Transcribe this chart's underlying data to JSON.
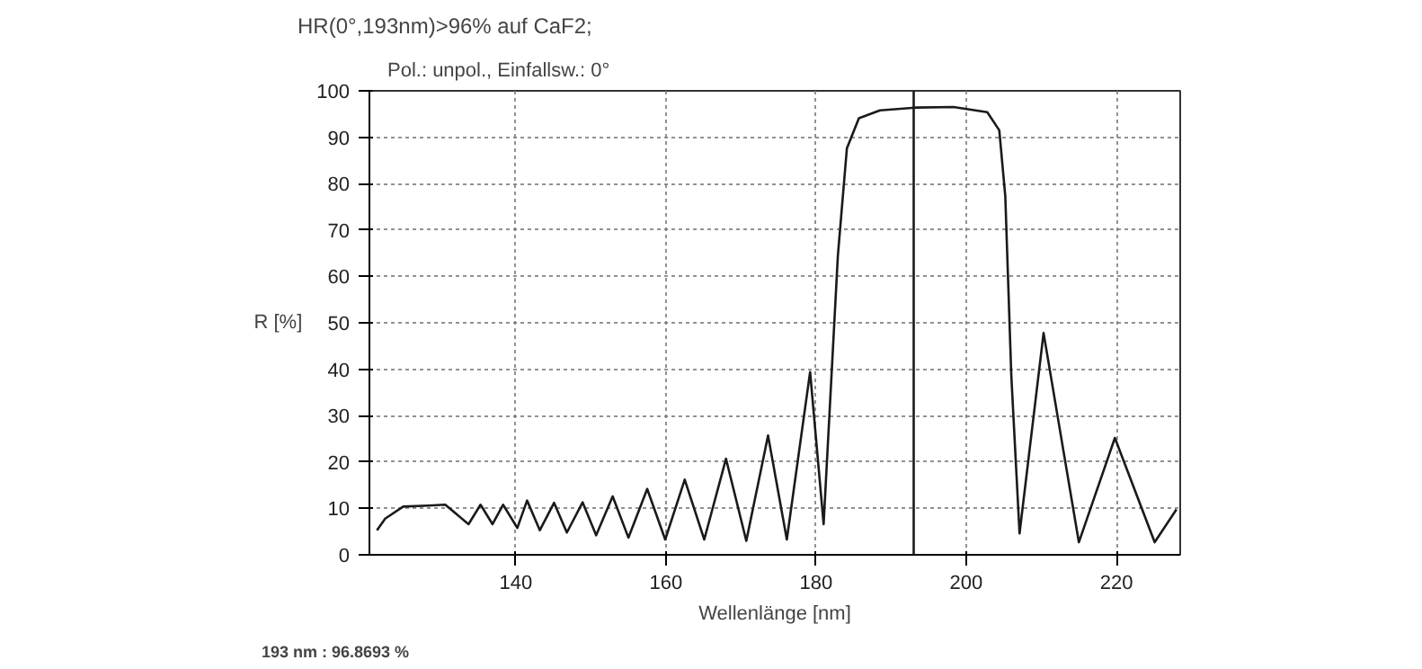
{
  "chart_data": {
    "type": "line",
    "title": "HR(0°,193nm)>96% auf CaF2;",
    "subtitle": "Pol.: unpol., Einfallsw.: 0°",
    "xlabel": "Wellenlänge [nm]",
    "ylabel": "R [%]",
    "x": [
      121.5,
      122.6,
      125.0,
      128.4,
      130.6,
      133.7,
      135.3,
      136.9,
      138.3,
      140.2,
      141.5,
      143.2,
      145.1,
      146.8,
      148.9,
      150.7,
      152.9,
      155.0,
      157.5,
      159.9,
      162.5,
      165.1,
      168.0,
      170.7,
      173.6,
      176.1,
      179.2,
      181.0,
      182.9,
      184.1,
      185.7,
      188.5,
      193.4,
      198.3,
      202.8,
      204.4,
      205.2,
      206.0,
      207.1,
      210.3,
      215.0,
      219.8,
      225.1,
      228.0
    ],
    "series": [
      {
        "color": "#1a1a1a",
        "values": [
          5.3,
          7.8,
          10.4,
          10.6,
          10.8,
          6.6,
          10.8,
          6.6,
          10.8,
          5.8,
          11.7,
          5.3,
          11.2,
          4.8,
          11.3,
          4.2,
          12.6,
          3.7,
          14.2,
          3.3,
          16.2,
          3.3,
          20.7,
          3.0,
          25.7,
          3.3,
          39.4,
          6.6,
          64.5,
          87.6,
          94.1,
          95.8,
          96.4,
          96.5,
          95.4,
          91.5,
          77.3,
          38.7,
          4.6,
          47.8,
          2.7,
          25.2,
          2.7,
          9.8
        ]
      }
    ],
    "xlim": [
      120.5,
      228.5
    ],
    "ylim": [
      0,
      100
    ],
    "xticks": [
      140,
      160,
      180,
      200,
      220
    ],
    "yticks": [
      0,
      10,
      20,
      30,
      40,
      50,
      60,
      70,
      80,
      90,
      100
    ],
    "grid": true,
    "ref_lines": [
      {
        "axis": "x",
        "value": 193,
        "color": "#1a1a1a"
      }
    ],
    "annotations": [
      "193 nm : 96.8693 %"
    ]
  }
}
